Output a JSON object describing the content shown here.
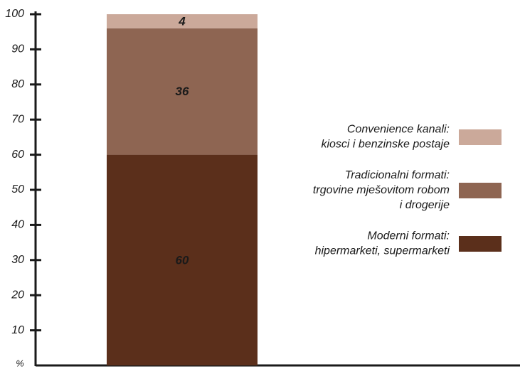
{
  "chart_data": {
    "type": "stacked_bar",
    "y_unit_label": "%",
    "categories": [
      null
    ],
    "series": [
      {
        "name": [
          "Moderni formati:",
          "hipermarketi, supermarketi"
        ],
        "color": "#5b2f1b",
        "values": [
          60
        ]
      },
      {
        "name": [
          "Tradicionalni formati:",
          "trgovine mješovitom robom",
          "i drogerije"
        ],
        "color": "#8e6552",
        "values": [
          36
        ]
      },
      {
        "name": [
          "Convenience kanali:",
          "kiosci i benzinske postaje"
        ],
        "color": "#cba99a",
        "values": [
          4
        ]
      }
    ],
    "ylim": [
      0,
      100
    ],
    "yticks": [
      10,
      20,
      30,
      40,
      50,
      60,
      70,
      80,
      90,
      100
    ],
    "grid": false,
    "legend": "right"
  }
}
